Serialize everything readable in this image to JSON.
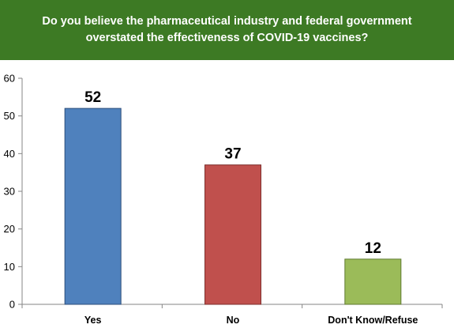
{
  "header": {
    "title": "Do you believe the pharmaceutical industry and federal government overstated the effectiveness of COVID-19 vaccines?",
    "background_color": "#3d7a24"
  },
  "chart_data": {
    "type": "bar",
    "title": "Do you believe the pharmaceutical industry and federal government overstated the effectiveness of COVID-19 vaccines?",
    "categories": [
      "Yes",
      "No",
      "Don't Know/Refuse"
    ],
    "values": [
      52,
      37,
      12
    ],
    "data_labels": [
      "52",
      "37",
      "12"
    ],
    "colors": [
      "#4f81bd",
      "#c0504d",
      "#9bbb59"
    ],
    "border_colors": [
      "#2c4d7a",
      "#7d2f2d",
      "#5f7a30"
    ],
    "xlabel": "",
    "ylabel": "",
    "ylim": [
      0,
      60
    ],
    "yticks": [
      0,
      10,
      20,
      30,
      40,
      50,
      60
    ],
    "grid": false,
    "legend": "none"
  }
}
